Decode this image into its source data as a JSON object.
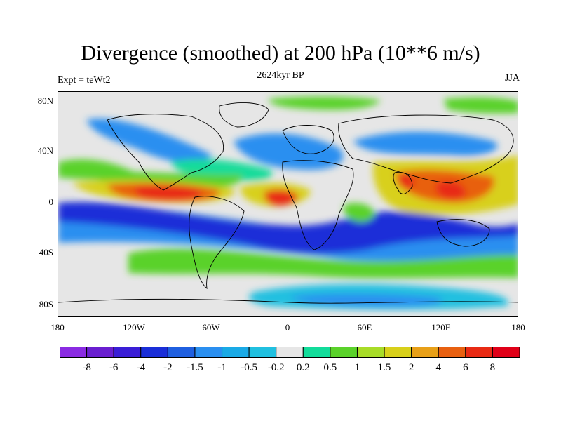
{
  "title": "Divergence (smoothed) at 200 hPa (10**6 m/s)",
  "subtitle_left": "Expt = teWt2",
  "subtitle_center": "2624kyr BP",
  "subtitle_right": "JJA",
  "lat_ticks": [
    "80N",
    "40N",
    "0",
    "40S",
    "80S"
  ],
  "lon_ticks": [
    "180",
    "120W",
    "60W",
    "0",
    "60E",
    "120E",
    "180"
  ],
  "colorbar": {
    "labels": [
      "-8",
      "-6",
      "-4",
      "-2",
      "-1.5",
      "-1",
      "-0.5",
      "-0.2",
      "0.2",
      "0.5",
      "1",
      "1.5",
      "2",
      "4",
      "6",
      "8"
    ],
    "colors": [
      "#8a2be2",
      "#6a1fd0",
      "#3a1ed6",
      "#1a2ed8",
      "#1f5fe0",
      "#2a8ff0",
      "#1aaae6",
      "#20c0e0",
      "#e6e6e6",
      "#12dc9a",
      "#5ad22a",
      "#a8dc28",
      "#d8d01a",
      "#e8a018",
      "#e86010",
      "#e82a14",
      "#e00018"
    ]
  },
  "map_fill": {
    "background": "#e6e6e6",
    "strong_neg": "#1a2ed8",
    "neg": "#2a8ff0",
    "weak_neg": "#20c0e0",
    "weak_pos": "#12dc9a",
    "pos": "#5ad22a",
    "mid_pos": "#d8d01a",
    "strong_pos": "#e86010",
    "max_pos": "#e82a14"
  }
}
